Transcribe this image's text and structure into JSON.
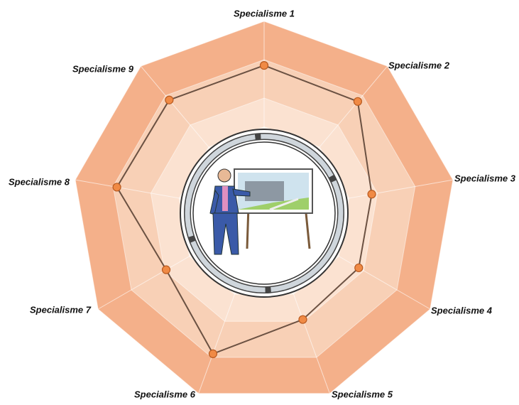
{
  "chart_data": {
    "type": "radar",
    "categories": [
      "Specialisme 1",
      "Specialisme 2",
      "Specialisme 3",
      "Specialisme 4",
      "Specialisme 5",
      "Specialisme 6",
      "Specialisme 7",
      "Specialisme 8",
      "Specialisme 9"
    ],
    "series": [
      {
        "color": "#6b5142",
        "marker_color": "#f08a45",
        "values": [
          77,
          76,
          57,
          57,
          59,
          78,
          59,
          78,
          77
        ]
      }
    ],
    "rlim": [
      0,
      100
    ],
    "band_colors": [
      "#f4b08a",
      "#f8d0b6",
      "#fbe2d1",
      "#fdf1e8"
    ]
  }
}
